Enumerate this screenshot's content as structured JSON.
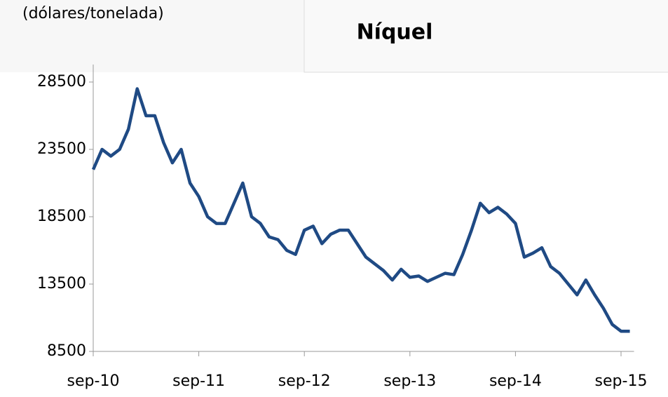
{
  "chart_data": {
    "type": "line",
    "title": "Níquel",
    "subtitle": "(dólares/tonelada)",
    "categories": [
      "sep-10",
      null,
      null,
      null,
      null,
      null,
      null,
      null,
      null,
      null,
      null,
      null,
      "sep-11",
      null,
      null,
      null,
      null,
      null,
      null,
      null,
      null,
      null,
      null,
      null,
      "sep-12",
      null,
      null,
      null,
      null,
      null,
      null,
      null,
      null,
      null,
      null,
      null,
      "sep-13",
      null,
      null,
      null,
      null,
      null,
      null,
      null,
      null,
      null,
      null,
      null,
      "sep-14",
      null,
      null,
      null,
      null,
      null,
      null,
      null,
      null,
      null,
      null,
      null,
      "sep-15",
      null
    ],
    "series": [
      {
        "name": "Níquel",
        "color": "#1f4a84",
        "values": [
          22000,
          23500,
          23000,
          23500,
          25000,
          28000,
          26000,
          26000,
          24000,
          22500,
          23500,
          21000,
          20000,
          18500,
          18000,
          18000,
          19500,
          21000,
          18500,
          18000,
          17000,
          16800,
          16000,
          15700,
          17500,
          17800,
          16500,
          17200,
          17500,
          17500,
          16500,
          15500,
          15000,
          14500,
          13800,
          14600,
          14000,
          14100,
          13700,
          14000,
          14300,
          14200,
          15700,
          17500,
          19500,
          18800,
          19200,
          18700,
          18000,
          15500,
          15800,
          16200,
          14800,
          14300,
          13500,
          12700,
          13800,
          12700,
          11700,
          10500,
          10000,
          10000
        ]
      }
    ],
    "ylim": [
      8500,
      29800
    ],
    "yticks": [
      8500,
      13500,
      18500,
      23500,
      28500
    ]
  }
}
